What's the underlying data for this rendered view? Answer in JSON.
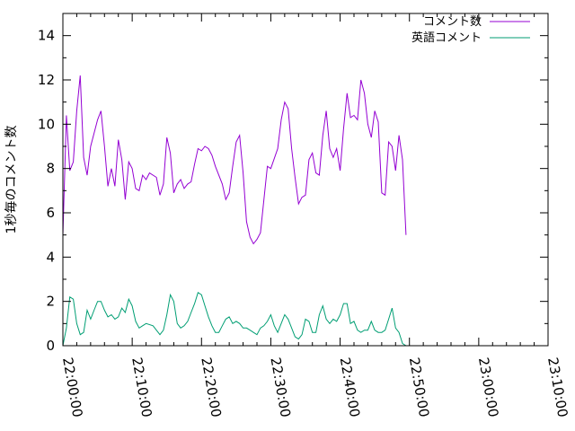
{
  "chart_data": {
    "type": "line",
    "ylabel": "1秒毎のコメント数",
    "ylim": [
      0,
      15
    ],
    "yticks": [
      0,
      2,
      4,
      6,
      8,
      10,
      12,
      14
    ],
    "xlim_minutes": [
      0,
      70
    ],
    "xticks": [
      "22:00:00",
      "22:10:00",
      "22:20:00",
      "22:30:00",
      "22:40:00",
      "22:50:00",
      "23:00:00",
      "23:10:00"
    ],
    "grid": false,
    "legend": "top-right",
    "series": [
      {
        "name": "コメント数",
        "color": "#9400d3",
        "points": [
          [
            "22:00:00",
            5.0
          ],
          [
            "22:00:30",
            10.4
          ],
          [
            "22:01:00",
            7.9
          ],
          [
            "22:01:30",
            8.3
          ],
          [
            "22:02:00",
            10.6
          ],
          [
            "22:02:30",
            12.2
          ],
          [
            "22:03:00",
            8.5
          ],
          [
            "22:03:30",
            7.7
          ],
          [
            "22:04:00",
            9.0
          ],
          [
            "22:05:00",
            10.2
          ],
          [
            "22:05:30",
            10.6
          ],
          [
            "22:06:00",
            9.0
          ],
          [
            "22:06:30",
            7.2
          ],
          [
            "22:07:00",
            8.0
          ],
          [
            "22:07:30",
            7.2
          ],
          [
            "22:08:00",
            9.3
          ],
          [
            "22:08:30",
            8.4
          ],
          [
            "22:09:00",
            6.6
          ],
          [
            "22:09:30",
            8.3
          ],
          [
            "22:10:00",
            8.0
          ],
          [
            "22:10:30",
            7.1
          ],
          [
            "22:11:00",
            7.0
          ],
          [
            "22:11:30",
            7.7
          ],
          [
            "22:12:00",
            7.5
          ],
          [
            "22:12:30",
            7.8
          ],
          [
            "22:13:30",
            7.6
          ],
          [
            "22:14:00",
            6.8
          ],
          [
            "22:14:30",
            7.3
          ],
          [
            "22:15:00",
            9.4
          ],
          [
            "22:15:30",
            8.7
          ],
          [
            "22:16:00",
            6.9
          ],
          [
            "22:16:30",
            7.3
          ],
          [
            "22:17:00",
            7.5
          ],
          [
            "22:17:30",
            7.1
          ],
          [
            "22:18:00",
            7.3
          ],
          [
            "22:18:30",
            7.4
          ],
          [
            "22:19:00",
            8.2
          ],
          [
            "22:19:30",
            8.9
          ],
          [
            "22:20:00",
            8.8
          ],
          [
            "22:20:30",
            9.0
          ],
          [
            "22:21:00",
            8.9
          ],
          [
            "22:21:30",
            8.6
          ],
          [
            "22:22:00",
            8.1
          ],
          [
            "22:23:00",
            7.3
          ],
          [
            "22:23:30",
            6.6
          ],
          [
            "22:24:00",
            6.9
          ],
          [
            "22:24:30",
            8.1
          ],
          [
            "22:25:00",
            9.2
          ],
          [
            "22:25:30",
            9.5
          ],
          [
            "22:26:00",
            7.8
          ],
          [
            "22:26:30",
            5.6
          ],
          [
            "22:27:00",
            4.9
          ],
          [
            "22:27:30",
            4.6
          ],
          [
            "22:28:00",
            4.8
          ],
          [
            "22:28:30",
            5.1
          ],
          [
            "22:29:30",
            8.1
          ],
          [
            "22:30:00",
            8.0
          ],
          [
            "22:31:00",
            8.9
          ],
          [
            "22:31:30",
            10.2
          ],
          [
            "22:32:00",
            11.0
          ],
          [
            "22:32:30",
            10.7
          ],
          [
            "22:33:00",
            8.9
          ],
          [
            "22:33:30",
            7.6
          ],
          [
            "22:34:00",
            6.4
          ],
          [
            "22:34:30",
            6.7
          ],
          [
            "22:35:00",
            6.8
          ],
          [
            "22:35:30",
            8.4
          ],
          [
            "22:36:00",
            8.7
          ],
          [
            "22:36:30",
            7.8
          ],
          [
            "22:37:00",
            7.7
          ],
          [
            "22:37:30",
            9.5
          ],
          [
            "22:38:00",
            10.6
          ],
          [
            "22:38:30",
            8.9
          ],
          [
            "22:39:00",
            8.5
          ],
          [
            "22:39:30",
            8.9
          ],
          [
            "22:40:00",
            7.9
          ],
          [
            "22:40:30",
            9.8
          ],
          [
            "22:41:00",
            11.4
          ],
          [
            "22:41:30",
            10.3
          ],
          [
            "22:42:00",
            10.4
          ],
          [
            "22:42:30",
            10.2
          ],
          [
            "22:43:00",
            12.0
          ],
          [
            "22:43:30",
            11.4
          ],
          [
            "22:44:00",
            10.0
          ],
          [
            "22:44:30",
            9.4
          ],
          [
            "22:45:00",
            10.6
          ],
          [
            "22:45:30",
            10.1
          ],
          [
            "22:46:00",
            6.9
          ],
          [
            "22:46:30",
            6.8
          ],
          [
            "22:47:00",
            9.2
          ],
          [
            "22:47:30",
            9.0
          ],
          [
            "22:48:00",
            7.9
          ],
          [
            "22:48:30",
            9.5
          ],
          [
            "22:49:00",
            8.4
          ],
          [
            "22:49:30",
            5.0
          ]
        ]
      },
      {
        "name": "英語コメント",
        "color": "#009e73",
        "points": [
          [
            "22:00:00",
            0.0
          ],
          [
            "22:00:30",
            0.8
          ],
          [
            "22:01:00",
            2.2
          ],
          [
            "22:01:30",
            2.1
          ],
          [
            "22:02:00",
            1.0
          ],
          [
            "22:02:30",
            0.5
          ],
          [
            "22:03:00",
            0.6
          ],
          [
            "22:03:30",
            1.6
          ],
          [
            "22:04:00",
            1.2
          ],
          [
            "22:04:30",
            1.6
          ],
          [
            "22:05:00",
            2.0
          ],
          [
            "22:05:30",
            2.0
          ],
          [
            "22:06:00",
            1.6
          ],
          [
            "22:06:30",
            1.3
          ],
          [
            "22:07:00",
            1.4
          ],
          [
            "22:07:30",
            1.2
          ],
          [
            "22:08:00",
            1.3
          ],
          [
            "22:08:30",
            1.7
          ],
          [
            "22:09:00",
            1.5
          ],
          [
            "22:09:30",
            2.1
          ],
          [
            "22:10:00",
            1.8
          ],
          [
            "22:10:30",
            1.1
          ],
          [
            "22:11:00",
            0.8
          ],
          [
            "22:11:30",
            0.9
          ],
          [
            "22:12:00",
            1.0
          ],
          [
            "22:13:00",
            0.9
          ],
          [
            "22:13:30",
            0.7
          ],
          [
            "22:14:00",
            0.5
          ],
          [
            "22:14:30",
            0.7
          ],
          [
            "22:15:00",
            1.4
          ],
          [
            "22:15:30",
            2.3
          ],
          [
            "22:16:00",
            2.0
          ],
          [
            "22:16:30",
            1.0
          ],
          [
            "22:17:00",
            0.8
          ],
          [
            "22:17:30",
            0.9
          ],
          [
            "22:18:00",
            1.1
          ],
          [
            "22:18:30",
            1.5
          ],
          [
            "22:19:00",
            1.9
          ],
          [
            "22:19:30",
            2.4
          ],
          [
            "22:20:00",
            2.3
          ],
          [
            "22:20:30",
            1.8
          ],
          [
            "22:21:00",
            1.3
          ],
          [
            "22:21:30",
            0.9
          ],
          [
            "22:22:00",
            0.6
          ],
          [
            "22:22:30",
            0.6
          ],
          [
            "22:23:00",
            0.9
          ],
          [
            "22:23:30",
            1.2
          ],
          [
            "22:24:00",
            1.3
          ],
          [
            "22:24:30",
            1.0
          ],
          [
            "22:25:00",
            1.1
          ],
          [
            "22:25:30",
            1.0
          ],
          [
            "22:26:00",
            0.8
          ],
          [
            "22:26:30",
            0.8
          ],
          [
            "22:27:00",
            0.7
          ],
          [
            "22:27:30",
            0.6
          ],
          [
            "22:28:00",
            0.5
          ],
          [
            "22:28:30",
            0.8
          ],
          [
            "22:29:00",
            0.9
          ],
          [
            "22:29:30",
            1.1
          ],
          [
            "22:30:00",
            1.4
          ],
          [
            "22:30:30",
            0.9
          ],
          [
            "22:31:00",
            0.6
          ],
          [
            "22:31:30",
            1.0
          ],
          [
            "22:32:00",
            1.4
          ],
          [
            "22:32:30",
            1.2
          ],
          [
            "22:33:00",
            0.8
          ],
          [
            "22:33:30",
            0.4
          ],
          [
            "22:34:00",
            0.3
          ],
          [
            "22:34:30",
            0.5
          ],
          [
            "22:35:00",
            1.2
          ],
          [
            "22:35:30",
            1.1
          ],
          [
            "22:36:00",
            0.6
          ],
          [
            "22:36:30",
            0.6
          ],
          [
            "22:37:00",
            1.4
          ],
          [
            "22:37:30",
            1.8
          ],
          [
            "22:38:00",
            1.2
          ],
          [
            "22:38:30",
            1.0
          ],
          [
            "22:39:00",
            1.2
          ],
          [
            "22:39:30",
            1.1
          ],
          [
            "22:40:00",
            1.4
          ],
          [
            "22:40:30",
            1.9
          ],
          [
            "22:41:00",
            1.9
          ],
          [
            "22:41:30",
            1.0
          ],
          [
            "22:42:00",
            1.1
          ],
          [
            "22:42:30",
            0.7
          ],
          [
            "22:43:00",
            0.6
          ],
          [
            "22:43:30",
            0.7
          ],
          [
            "22:44:00",
            0.7
          ],
          [
            "22:44:30",
            1.1
          ],
          [
            "22:45:00",
            0.7
          ],
          [
            "22:45:30",
            0.6
          ],
          [
            "22:46:00",
            0.6
          ],
          [
            "22:46:30",
            0.7
          ],
          [
            "22:47:00",
            1.2
          ],
          [
            "22:47:30",
            1.7
          ],
          [
            "22:48:00",
            0.8
          ],
          [
            "22:48:30",
            0.6
          ],
          [
            "22:49:00",
            0.1
          ],
          [
            "22:49:30",
            0.0
          ]
        ]
      }
    ]
  }
}
